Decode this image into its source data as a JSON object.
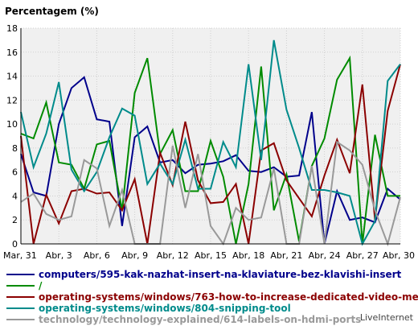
{
  "chart_data": {
    "type": "line",
    "title": "Percentagem (%)",
    "xlabel": "",
    "ylabel": "",
    "ylim": [
      0,
      18
    ],
    "yticks": [
      "0",
      "2",
      "4",
      "6",
      "8",
      "10",
      "12",
      "14",
      "16",
      "18"
    ],
    "grid": true,
    "legend_position": "bottom",
    "x_labels": [
      "Mar, 31",
      "Abr, 3",
      "Abr, 6",
      "Abr, 9",
      "Abr, 12",
      "Abr, 15",
      "Abr, 18",
      "Abr, 21",
      "Abr, 24",
      "Abr, 27",
      "Abr, 30"
    ],
    "x_count": 31,
    "series": [
      {
        "name": "computers/595-kak-nazhat-insert-na-klaviature-bez-klavishi-insert",
        "color": "#00008b",
        "values": [
          7.5,
          4.3,
          4.0,
          10.0,
          13.0,
          13.9,
          10.4,
          10.2,
          1.5,
          8.9,
          9.8,
          6.8,
          7.0,
          5.9,
          6.6,
          6.7,
          6.9,
          7.4,
          6.1,
          6.0,
          6.4,
          5.6,
          5.7,
          11.0,
          0.0,
          4.4,
          2.0,
          2.2,
          1.8,
          4.6,
          3.7
        ]
      },
      {
        "name": "/",
        "color": "#008b00",
        "values": [
          9.2,
          8.8,
          11.8,
          6.8,
          6.6,
          4.6,
          8.3,
          8.6,
          2.8,
          12.6,
          15.5,
          7.5,
          9.5,
          4.4,
          4.4,
          8.6,
          5.6,
          0.0,
          5.0,
          14.8,
          2.8,
          5.8,
          0.2,
          6.5,
          8.8,
          13.7,
          15.5,
          0.0,
          9.1,
          4.0,
          4.0
        ]
      },
      {
        "name": "operating-systems/windows/763-how-to-increase-dedicated-video-memory",
        "color": "#8b0000",
        "values": [
          9.0,
          0.0,
          4.1,
          1.7,
          4.4,
          4.6,
          4.2,
          4.3,
          2.8,
          5.4,
          0.0,
          7.6,
          4.9,
          10.2,
          5.3,
          3.4,
          3.5,
          5.0,
          0.0,
          7.8,
          8.4,
          5.3,
          3.8,
          2.3,
          5.7,
          8.7,
          5.9,
          13.3,
          2.0,
          11.1,
          15.0
        ]
      },
      {
        "name": "operating-systems/windows/804-snipping-tool",
        "color": "#008b8b",
        "values": [
          11.0,
          6.4,
          9.2,
          13.5,
          6.2,
          4.4,
          6.0,
          8.9,
          11.3,
          10.7,
          5.0,
          6.7,
          5.0,
          8.7,
          4.6,
          4.6,
          8.5,
          6.4,
          15.0,
          7.0,
          17.0,
          11.2,
          8.0,
          4.5,
          4.5,
          4.3,
          4.0,
          0.0,
          1.9,
          13.6,
          15.0
        ]
      },
      {
        "name": "technology/technology-explained/614-labels-on-hdmi-ports",
        "color": "#999999",
        "values": [
          3.5,
          4.2,
          2.5,
          2.0,
          2.3,
          7.0,
          6.3,
          1.5,
          4.5,
          0.0,
          0.0,
          0.0,
          8.2,
          3.0,
          7.5,
          1.5,
          0.0,
          3.0,
          2.0,
          2.2,
          6.3,
          0.0,
          0.0,
          6.5,
          0.0,
          8.5,
          7.8,
          6.6,
          2.8,
          0.0,
          3.9
        ]
      }
    ]
  },
  "watermark": "LiveInternet"
}
